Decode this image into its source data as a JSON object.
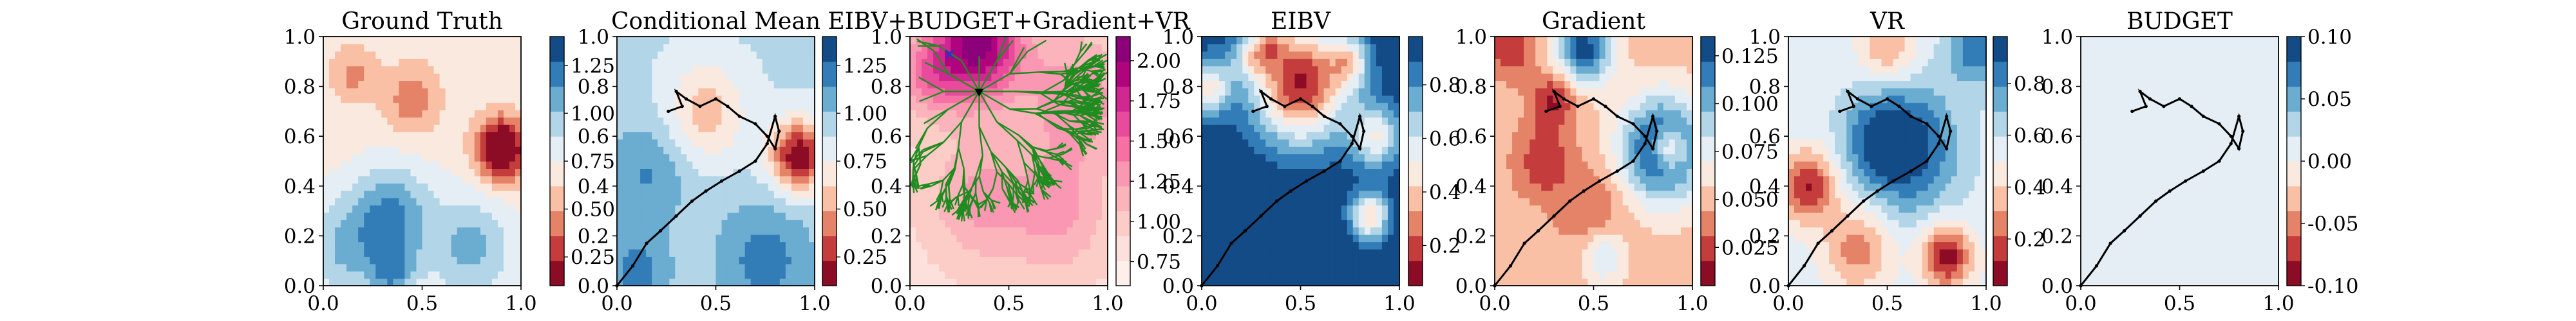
{
  "figure": {
    "background": "#ffffff"
  },
  "chart_data": [
    {
      "type": "heatmap",
      "title": "Ground Truth",
      "xlim": [
        0,
        1
      ],
      "ylim": [
        0,
        1
      ],
      "xticks": [
        "0.0",
        "0.5",
        "1.0"
      ],
      "yticks": [
        "0.0",
        "0.2",
        "0.4",
        "0.6",
        "0.8",
        "1.0"
      ],
      "colormap": "RdBu",
      "colorbar": {
        "range": [
          0.1,
          1.4
        ],
        "ticks": [
          "0.25",
          "0.50",
          "0.75",
          "1.00",
          "1.25"
        ]
      },
      "field": {
        "base": 0.7,
        "features": [
          {
            "x": 0.9,
            "y": 0.55,
            "amp": -0.75,
            "sigma": 0.09
          },
          {
            "x": 0.35,
            "y": 0.28,
            "amp": 0.45,
            "sigma": 0.14
          },
          {
            "x": 0.1,
            "y": 0.15,
            "amp": 0.3,
            "sigma": 0.15
          },
          {
            "x": 0.75,
            "y": 0.15,
            "amp": 0.35,
            "sigma": 0.15
          },
          {
            "x": 0.45,
            "y": 0.75,
            "amp": -0.3,
            "sigma": 0.1
          },
          {
            "x": 0.15,
            "y": 0.85,
            "amp": -0.25,
            "sigma": 0.08
          },
          {
            "x": 0.35,
            "y": 0.05,
            "amp": 0.35,
            "sigma": 0.08
          }
        ]
      },
      "path": []
    },
    {
      "type": "heatmap",
      "title": "Conditional Mean",
      "xlim": [
        0,
        1
      ],
      "ylim": [
        0,
        1
      ],
      "xticks": [
        "0.0",
        "0.5",
        "1.0"
      ],
      "yticks": [
        "0.0",
        "0.2",
        "0.4",
        "0.6",
        "0.8",
        "1.0"
      ],
      "colormap": "RdBu",
      "colorbar": {
        "range": [
          0.1,
          1.4
        ],
        "ticks": [
          "0.25",
          "0.50",
          "0.75",
          "1.00",
          "1.25"
        ]
      },
      "field": {
        "base": 0.9,
        "features": [
          {
            "x": 0.92,
            "y": 0.52,
            "amp": -0.8,
            "sigma": 0.1
          },
          {
            "x": 0.45,
            "y": 0.7,
            "amp": -0.35,
            "sigma": 0.14
          },
          {
            "x": 0.15,
            "y": 0.45,
            "amp": 0.25,
            "sigma": 0.15
          },
          {
            "x": 0.75,
            "y": 0.1,
            "amp": 0.3,
            "sigma": 0.18
          },
          {
            "x": 0.1,
            "y": 0.05,
            "amp": 0.3,
            "sigma": 0.12
          }
        ]
      },
      "path": [
        [
          0,
          0
        ],
        [
          0.08,
          0.08
        ],
        [
          0.15,
          0.17
        ],
        [
          0.22,
          0.22
        ],
        [
          0.3,
          0.28
        ],
        [
          0.38,
          0.34
        ],
        [
          0.45,
          0.38
        ],
        [
          0.53,
          0.42
        ],
        [
          0.62,
          0.46
        ],
        [
          0.7,
          0.5
        ],
        [
          0.76,
          0.57
        ],
        [
          0.8,
          0.68
        ],
        [
          0.82,
          0.62
        ],
        [
          0.8,
          0.55
        ],
        [
          0.76,
          0.6
        ],
        [
          0.7,
          0.65
        ],
        [
          0.62,
          0.68
        ],
        [
          0.56,
          0.72
        ],
        [
          0.5,
          0.75
        ],
        [
          0.42,
          0.72
        ],
        [
          0.35,
          0.75
        ],
        [
          0.3,
          0.78
        ],
        [
          0.33,
          0.72
        ],
        [
          0.26,
          0.7
        ]
      ]
    },
    {
      "type": "heatmap",
      "title": "EIBV+BUDGET+Gradient+VR",
      "xlim": [
        0,
        1
      ],
      "ylim": [
        0,
        1
      ],
      "xticks": [
        "0.0",
        "0.5",
        "1.0"
      ],
      "yticks": [
        "0.0",
        "0.2",
        "0.4",
        "0.6",
        "0.8",
        "1.0"
      ],
      "colormap": "RdPu",
      "colorbar": {
        "range": [
          0.6,
          2.15
        ],
        "ticks": [
          "0.75",
          "1.00",
          "1.25",
          "1.50",
          "1.75",
          "2.00"
        ]
      },
      "field": {
        "base": 0.85,
        "features": [
          {
            "x": 0.35,
            "y": 0.97,
            "amp": 1.2,
            "sigma": 0.16
          },
          {
            "x": 0.1,
            "y": 0.85,
            "amp": 0.5,
            "sigma": 0.12
          },
          {
            "x": 0.85,
            "y": 0.75,
            "amp": 0.5,
            "sigma": 0.18
          },
          {
            "x": 0.35,
            "y": 0.35,
            "amp": 0.4,
            "sigma": 0.18
          },
          {
            "x": 0.75,
            "y": 0.3,
            "amp": 0.4,
            "sigma": 0.18
          }
        ]
      },
      "tree_root": [
        0.35,
        0.78
      ],
      "marker_x": [
        0.2,
        0.93
      ],
      "path": []
    },
    {
      "type": "heatmap",
      "title": "EIBV",
      "xlim": [
        0,
        1
      ],
      "ylim": [
        0,
        1
      ],
      "xticks": [
        "0.0",
        "0.5",
        "1.0"
      ],
      "yticks": [
        "0.0",
        "0.2",
        "0.4",
        "0.6",
        "0.8",
        "1.0"
      ],
      "colormap": "RdBu",
      "colorbar": {
        "range": [
          0.05,
          0.98
        ],
        "ticks": [
          "0.2",
          "0.4",
          "0.6",
          "0.8"
        ]
      },
      "field": {
        "base": 0.98,
        "features": [
          {
            "x": 0.5,
            "y": 0.82,
            "amp": -0.85,
            "sigma": 0.17
          },
          {
            "x": 0.25,
            "y": 0.93,
            "amp": -0.3,
            "sigma": 0.07
          },
          {
            "x": 0.35,
            "y": 0.98,
            "amp": -0.25,
            "sigma": 0.06
          },
          {
            "x": 0.75,
            "y": 0.9,
            "amp": -0.35,
            "sigma": 0.07
          },
          {
            "x": 0.88,
            "y": 0.6,
            "amp": -0.45,
            "sigma": 0.09
          },
          {
            "x": 0.85,
            "y": 0.28,
            "amp": -0.55,
            "sigma": 0.07
          },
          {
            "x": 0.03,
            "y": 0.8,
            "amp": -0.5,
            "sigma": 0.08
          }
        ]
      },
      "path": [
        [
          0,
          0
        ],
        [
          0.08,
          0.08
        ],
        [
          0.15,
          0.17
        ],
        [
          0.22,
          0.22
        ],
        [
          0.3,
          0.28
        ],
        [
          0.38,
          0.34
        ],
        [
          0.45,
          0.38
        ],
        [
          0.53,
          0.42
        ],
        [
          0.62,
          0.46
        ],
        [
          0.7,
          0.5
        ],
        [
          0.76,
          0.57
        ],
        [
          0.8,
          0.68
        ],
        [
          0.82,
          0.62
        ],
        [
          0.8,
          0.55
        ],
        [
          0.76,
          0.6
        ],
        [
          0.7,
          0.65
        ],
        [
          0.62,
          0.68
        ],
        [
          0.56,
          0.72
        ],
        [
          0.5,
          0.75
        ],
        [
          0.42,
          0.72
        ],
        [
          0.35,
          0.75
        ],
        [
          0.3,
          0.78
        ],
        [
          0.33,
          0.72
        ],
        [
          0.26,
          0.7
        ]
      ]
    },
    {
      "type": "heatmap",
      "title": "Gradient",
      "xlim": [
        0,
        1
      ],
      "ylim": [
        0,
        1
      ],
      "xticks": [
        "0.0",
        "0.5",
        "1.0"
      ],
      "yticks": [
        "0.0",
        "0.2",
        "0.4",
        "0.6",
        "0.8",
        "1.0"
      ],
      "colormap": "RdBu",
      "colorbar": {
        "range": [
          0.005,
          0.135
        ],
        "ticks": [
          "0.025",
          "0.050",
          "0.075",
          "0.100",
          "0.125"
        ]
      },
      "field": {
        "base": 0.05,
        "features": [
          {
            "x": 0.85,
            "y": 0.55,
            "amp": 0.09,
            "sigma": 0.15
          },
          {
            "x": 0.88,
            "y": 0.55,
            "amp": -0.06,
            "sigma": 0.06
          },
          {
            "x": 0.45,
            "y": 0.95,
            "amp": 0.08,
            "sigma": 0.1
          },
          {
            "x": 0.3,
            "y": 0.75,
            "amp": -0.035,
            "sigma": 0.08
          },
          {
            "x": 0.25,
            "y": 0.5,
            "amp": -0.03,
            "sigma": 0.1
          },
          {
            "x": 0.5,
            "y": 0.3,
            "amp": -0.02,
            "sigma": 0.12
          },
          {
            "x": 0.08,
            "y": 0.95,
            "amp": -0.03,
            "sigma": 0.08
          },
          {
            "x": 0.55,
            "y": 0.12,
            "amp": 0.035,
            "sigma": 0.08
          }
        ]
      },
      "path": [
        [
          0,
          0
        ],
        [
          0.08,
          0.08
        ],
        [
          0.15,
          0.17
        ],
        [
          0.22,
          0.22
        ],
        [
          0.3,
          0.28
        ],
        [
          0.38,
          0.34
        ],
        [
          0.45,
          0.38
        ],
        [
          0.53,
          0.42
        ],
        [
          0.62,
          0.46
        ],
        [
          0.7,
          0.5
        ],
        [
          0.76,
          0.57
        ],
        [
          0.8,
          0.68
        ],
        [
          0.82,
          0.62
        ],
        [
          0.8,
          0.55
        ],
        [
          0.76,
          0.6
        ],
        [
          0.7,
          0.65
        ],
        [
          0.62,
          0.68
        ],
        [
          0.56,
          0.72
        ],
        [
          0.5,
          0.75
        ],
        [
          0.42,
          0.72
        ],
        [
          0.35,
          0.75
        ],
        [
          0.3,
          0.78
        ],
        [
          0.33,
          0.72
        ],
        [
          0.26,
          0.7
        ]
      ]
    },
    {
      "type": "heatmap",
      "title": "VR",
      "xlim": [
        0,
        1
      ],
      "ylim": [
        0,
        1
      ],
      "xticks": [
        "0.0",
        "0.5",
        "1.0"
      ],
      "yticks": [
        "0.0",
        "0.2",
        "0.4",
        "0.6",
        "0.8",
        "1.0"
      ],
      "colormap": "RdBu",
      "colorbar": {
        "range": [
          0.02,
          0.98
        ],
        "ticks": [
          "0.2",
          "0.4",
          "0.6",
          "0.8"
        ]
      },
      "field": {
        "base": 0.55,
        "features": [
          {
            "x": 0.6,
            "y": 0.55,
            "amp": 0.4,
            "sigma": 0.18
          },
          {
            "x": 0.45,
            "y": 0.6,
            "amp": 0.2,
            "sigma": 0.12
          },
          {
            "x": 0.1,
            "y": 0.4,
            "amp": -0.45,
            "sigma": 0.1
          },
          {
            "x": 0.35,
            "y": 0.15,
            "amp": -0.3,
            "sigma": 0.12
          },
          {
            "x": 0.8,
            "y": 0.12,
            "amp": -0.5,
            "sigma": 0.09
          },
          {
            "x": 0.5,
            "y": 0.95,
            "amp": -0.25,
            "sigma": 0.1
          },
          {
            "x": 0.95,
            "y": 0.95,
            "amp": 0.3,
            "sigma": 0.1
          }
        ]
      },
      "path": [
        [
          0,
          0
        ],
        [
          0.08,
          0.08
        ],
        [
          0.15,
          0.17
        ],
        [
          0.22,
          0.22
        ],
        [
          0.3,
          0.28
        ],
        [
          0.38,
          0.34
        ],
        [
          0.45,
          0.38
        ],
        [
          0.53,
          0.42
        ],
        [
          0.62,
          0.46
        ],
        [
          0.7,
          0.5
        ],
        [
          0.76,
          0.57
        ],
        [
          0.8,
          0.68
        ],
        [
          0.82,
          0.62
        ],
        [
          0.8,
          0.55
        ],
        [
          0.76,
          0.6
        ],
        [
          0.7,
          0.65
        ],
        [
          0.62,
          0.68
        ],
        [
          0.56,
          0.72
        ],
        [
          0.5,
          0.75
        ],
        [
          0.42,
          0.72
        ],
        [
          0.35,
          0.75
        ],
        [
          0.3,
          0.78
        ],
        [
          0.33,
          0.72
        ],
        [
          0.26,
          0.7
        ]
      ]
    },
    {
      "type": "heatmap",
      "title": "BUDGET",
      "xlim": [
        0,
        1
      ],
      "ylim": [
        0,
        1
      ],
      "xticks": [
        "0.0",
        "0.5",
        "1.0"
      ],
      "yticks": [
        "0.0",
        "0.2",
        "0.4",
        "0.6",
        "0.8",
        "1.0"
      ],
      "colormap": "RdBu",
      "colorbar": {
        "range": [
          -0.1,
          0.1
        ],
        "ticks": [
          "-0.10",
          "-0.05",
          "0.00",
          "0.05",
          "0.10"
        ]
      },
      "field": {
        "base": 0.0,
        "features": []
      },
      "path": [
        [
          0,
          0
        ],
        [
          0.08,
          0.08
        ],
        [
          0.15,
          0.17
        ],
        [
          0.22,
          0.22
        ],
        [
          0.3,
          0.28
        ],
        [
          0.38,
          0.34
        ],
        [
          0.45,
          0.38
        ],
        [
          0.53,
          0.42
        ],
        [
          0.62,
          0.46
        ],
        [
          0.7,
          0.5
        ],
        [
          0.76,
          0.57
        ],
        [
          0.8,
          0.68
        ],
        [
          0.82,
          0.62
        ],
        [
          0.8,
          0.55
        ],
        [
          0.76,
          0.6
        ],
        [
          0.7,
          0.65
        ],
        [
          0.62,
          0.68
        ],
        [
          0.56,
          0.72
        ],
        [
          0.5,
          0.75
        ],
        [
          0.42,
          0.72
        ],
        [
          0.35,
          0.75
        ],
        [
          0.3,
          0.78
        ],
        [
          0.33,
          0.72
        ],
        [
          0.26,
          0.7
        ]
      ]
    }
  ]
}
